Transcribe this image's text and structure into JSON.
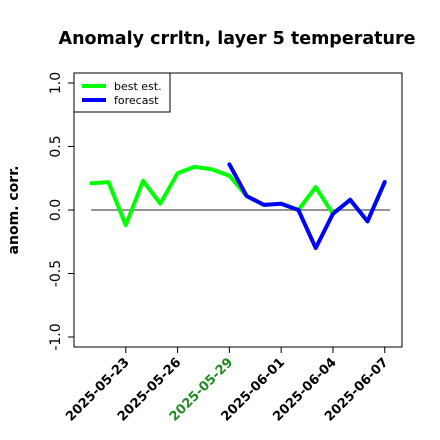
{
  "chart_data": {
    "type": "line",
    "title": "Anomaly crrltn, layer 5 temperature",
    "xlabel": "",
    "ylabel": "anom. corr.",
    "ylim": [
      -1.0,
      1.0
    ],
    "yticks": [
      "-1.0",
      "-0.5",
      "0.0",
      "0.5",
      "1.0"
    ],
    "x": [
      "2025-05-21",
      "2025-05-22",
      "2025-05-23",
      "2025-05-24",
      "2025-05-25",
      "2025-05-26",
      "2025-05-27",
      "2025-05-28",
      "2025-05-29",
      "2025-05-30",
      "2025-05-31",
      "2025-06-01",
      "2025-06-02",
      "2025-06-03",
      "2025-06-04",
      "2025-06-05",
      "2025-06-06",
      "2025-06-07"
    ],
    "xticks": [
      {
        "label": "2025-05-23",
        "x": "2025-05-23",
        "color": "#000000"
      },
      {
        "label": "2025-05-26",
        "x": "2025-05-26",
        "color": "#000000"
      },
      {
        "label": "2025-05-29",
        "x": "2025-05-29",
        "color": "#228b22"
      },
      {
        "label": "2025-06-01",
        "x": "2025-06-01",
        "color": "#000000"
      },
      {
        "label": "2025-06-04",
        "x": "2025-06-04",
        "color": "#000000"
      },
      {
        "label": "2025-06-07",
        "x": "2025-06-07",
        "color": "#000000"
      }
    ],
    "xlim": [
      "2025-05-20",
      "2025-06-08"
    ],
    "zero_line": 0.0,
    "grid": false,
    "legend_position": "top-left",
    "series": [
      {
        "name": "best est.",
        "color": "#00ff00",
        "x": [
          "2025-05-21",
          "2025-05-22",
          "2025-05-23",
          "2025-05-24",
          "2025-05-25",
          "2025-05-26",
          "2025-05-27",
          "2025-05-28",
          "2025-05-29",
          "2025-05-30",
          "2025-05-31",
          "2025-06-01",
          "2025-06-02",
          "2025-06-03",
          "2025-06-04",
          "2025-06-05",
          "2025-06-06",
          "2025-06-07"
        ],
        "values": [
          0.21,
          0.22,
          -0.12,
          0.23,
          0.05,
          0.29,
          0.34,
          0.32,
          0.27,
          0.11,
          0.04,
          0.05,
          0.0,
          0.18,
          -0.03,
          0.08,
          -0.09,
          0.22
        ]
      },
      {
        "name": "forecast",
        "color": "#0000ff",
        "x": [
          "2025-05-29",
          "2025-05-30",
          "2025-05-31",
          "2025-06-01",
          "2025-06-02",
          "2025-06-03",
          "2025-06-04",
          "2025-06-05",
          "2025-06-06",
          "2025-06-07"
        ],
        "values": [
          0.36,
          0.11,
          0.04,
          0.05,
          0.0,
          -0.3,
          -0.03,
          0.08,
          -0.09,
          0.22
        ]
      }
    ]
  }
}
